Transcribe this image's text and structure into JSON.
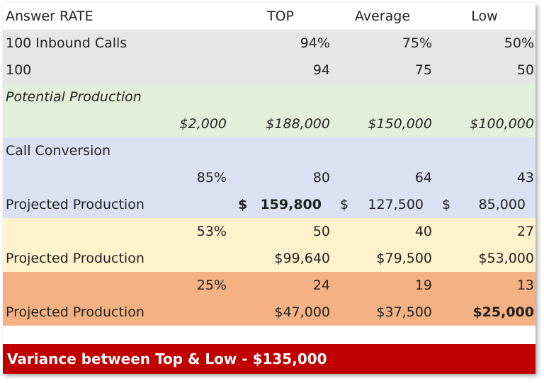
{
  "header": {
    "label": "Answer RATE",
    "top": "TOP",
    "average": "Average",
    "low": "Low"
  },
  "inbound_pct": {
    "label": "100 Inbound Calls",
    "top": "94%",
    "average": "75%",
    "low": "50%"
  },
  "inbound_count": {
    "label": "100",
    "top": "94",
    "average": "75",
    "low": "50"
  },
  "potential": {
    "label": "Potential Production",
    "unit_value": "$2,000",
    "top": "$188,000",
    "average": "$150,000",
    "low": "$100,000"
  },
  "conversion_title": {
    "label": "Call Conversion"
  },
  "conv_high": {
    "rate": "85%",
    "top": "80",
    "average": "64",
    "low": "43"
  },
  "proj_high": {
    "label": "Projected Production",
    "currency": "$",
    "top": "159,800",
    "average": "127,500",
    "low": "85,000"
  },
  "conv_mid": {
    "rate": "53%",
    "top": "50",
    "average": "40",
    "low": "27"
  },
  "proj_mid": {
    "label": "Projected Production",
    "top": "$99,640",
    "average": "$79,500",
    "low": "$53,000"
  },
  "conv_low": {
    "rate": "25%",
    "top": "24",
    "average": "19",
    "low": "13"
  },
  "proj_low": {
    "label": "Projected Production",
    "top": "$47,000",
    "average": "$37,500",
    "low": "$25,000"
  },
  "variance": {
    "text": "Variance between Top & Low - $135,000"
  },
  "colors": {
    "gray": "#e6e6e6",
    "green": "#e2efda",
    "blue": "#d9e1f2",
    "yellow": "#fff2cc",
    "orange": "#f4b183",
    "red": "#c00000"
  }
}
